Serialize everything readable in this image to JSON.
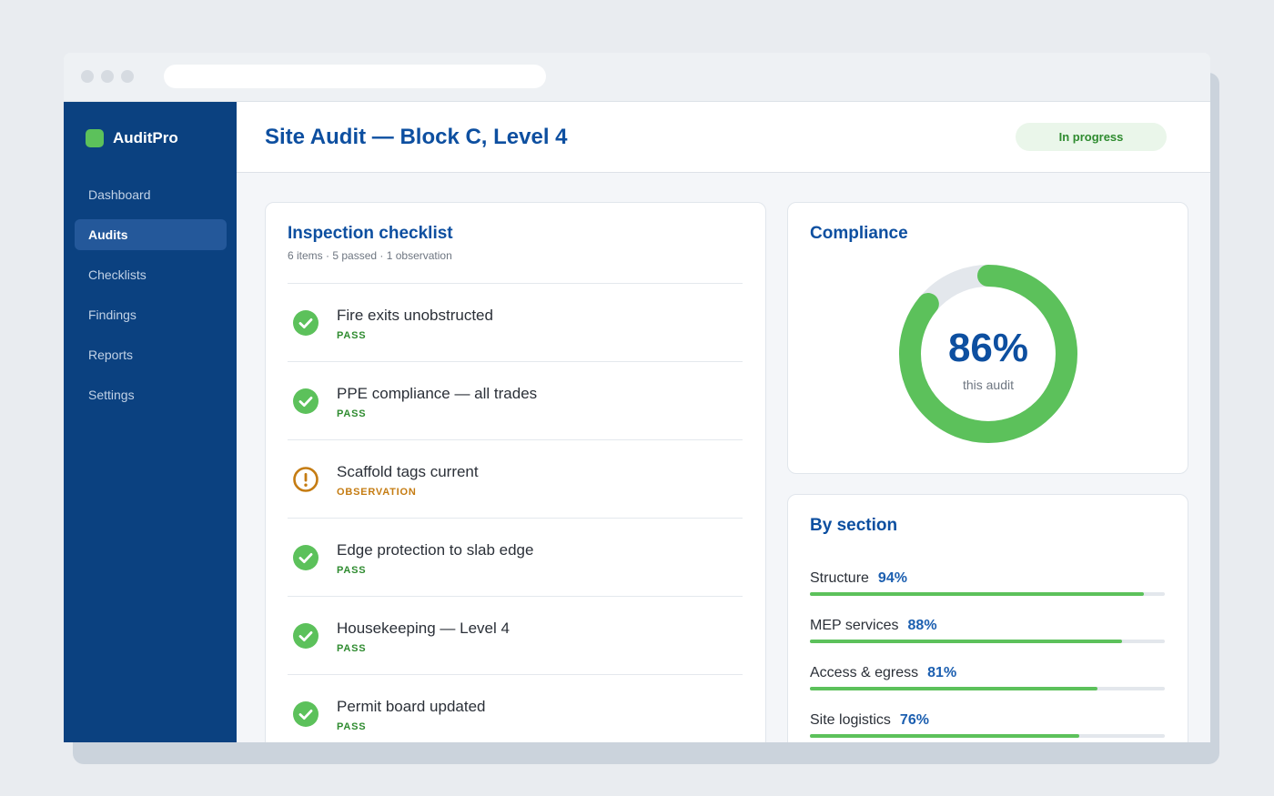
{
  "app": {
    "name": "AuditPro"
  },
  "colors": {
    "sidebar": "#0b4180",
    "accent": "#0d4fa0",
    "pass": "#2e8b2f",
    "observation": "#c57c12",
    "progress": "#5cc15b"
  },
  "sidebar": {
    "items": [
      {
        "label": "Dashboard",
        "active": false
      },
      {
        "label": "Audits",
        "active": true
      },
      {
        "label": "Checklists",
        "active": false
      },
      {
        "label": "Findings",
        "active": false
      },
      {
        "label": "Reports",
        "active": false
      },
      {
        "label": "Settings",
        "active": false
      }
    ]
  },
  "header": {
    "title": "Site Audit — Block C, Level 4",
    "status": "In progress"
  },
  "checklist": {
    "title": "Inspection checklist",
    "summary": "6 items · 5 passed · 1 observation",
    "items": [
      {
        "label": "Fire exits unobstructed",
        "status": "PASS",
        "icon": "check-circle-icon"
      },
      {
        "label": "PPE compliance — all trades",
        "status": "PASS",
        "icon": "check-circle-icon"
      },
      {
        "label": "Scaffold tags current",
        "status": "OBSERVATION",
        "icon": "warning-circle-icon"
      },
      {
        "label": "Edge protection to slab edge",
        "status": "PASS",
        "icon": "check-circle-icon"
      },
      {
        "label": "Housekeeping — Level 4",
        "status": "PASS",
        "icon": "check-circle-icon"
      },
      {
        "label": "Permit board updated",
        "status": "PASS",
        "icon": "check-circle-icon"
      }
    ]
  },
  "compliance": {
    "title": "Compliance",
    "value": 86,
    "display": "86%",
    "caption": "this audit"
  },
  "by_section": {
    "title": "By section",
    "sections": [
      {
        "name": "Structure",
        "value": 94,
        "display": "94%"
      },
      {
        "name": "MEP services",
        "value": 88,
        "display": "88%"
      },
      {
        "name": "Access & egress",
        "value": 81,
        "display": "81%"
      },
      {
        "name": "Site logistics",
        "value": 76,
        "display": "76%"
      }
    ]
  }
}
